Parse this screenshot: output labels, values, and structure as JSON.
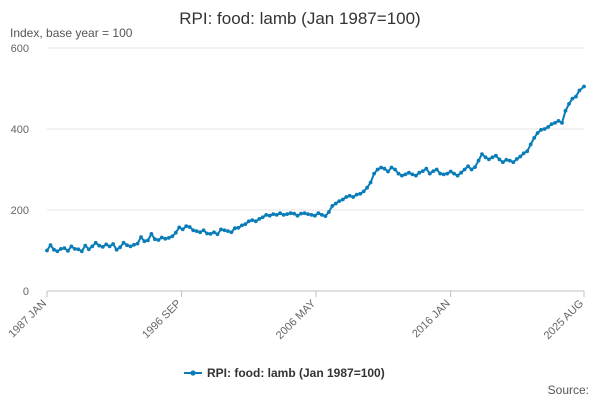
{
  "chart_data": {
    "type": "line",
    "title": "RPI: food: lamb (Jan 1987=100)",
    "subtitle": "Index, base year = 100",
    "source_label": "Source:",
    "color": "#0a7cb8",
    "ylim": [
      0,
      600
    ],
    "yticks": [
      0,
      200,
      400,
      600
    ],
    "xlim": [
      1987.0,
      2025.58
    ],
    "xticks": [
      {
        "label": "1987 JAN",
        "x": 1987.0
      },
      {
        "label": "1996 SEP",
        "x": 1996.67
      },
      {
        "label": "2006 MAY",
        "x": 2006.33
      },
      {
        "label": "2016 JAN",
        "x": 2016.0
      },
      {
        "label": "2025 AUG",
        "x": 2025.58
      }
    ],
    "legend_placement": "bottom",
    "grid": true,
    "series": [
      {
        "name": "RPI: food: lamb (Jan 1987=100)",
        "points": [
          [
            1987.0,
            100
          ],
          [
            1987.25,
            113
          ],
          [
            1987.5,
            102
          ],
          [
            1987.75,
            98
          ],
          [
            1988.0,
            104
          ],
          [
            1988.25,
            106
          ],
          [
            1988.5,
            99
          ],
          [
            1988.75,
            110
          ],
          [
            1989.0,
            104
          ],
          [
            1989.25,
            103
          ],
          [
            1989.5,
            98
          ],
          [
            1989.75,
            112
          ],
          [
            1990.0,
            103
          ],
          [
            1990.25,
            110
          ],
          [
            1990.5,
            119
          ],
          [
            1990.75,
            112
          ],
          [
            1991.0,
            109
          ],
          [
            1991.25,
            115
          ],
          [
            1991.5,
            110
          ],
          [
            1991.75,
            116
          ],
          [
            1992.0,
            102
          ],
          [
            1992.25,
            108
          ],
          [
            1992.5,
            119
          ],
          [
            1992.75,
            113
          ],
          [
            1993.0,
            110
          ],
          [
            1993.25,
            114
          ],
          [
            1993.5,
            117
          ],
          [
            1993.75,
            133
          ],
          [
            1994.0,
            123
          ],
          [
            1994.25,
            125
          ],
          [
            1994.5,
            141
          ],
          [
            1994.75,
            128
          ],
          [
            1995.0,
            126
          ],
          [
            1995.25,
            132
          ],
          [
            1995.5,
            129
          ],
          [
            1995.75,
            131
          ],
          [
            1996.0,
            135
          ],
          [
            1996.25,
            144
          ],
          [
            1996.5,
            157
          ],
          [
            1996.75,
            152
          ],
          [
            1997.0,
            160
          ],
          [
            1997.25,
            158
          ],
          [
            1997.5,
            150
          ],
          [
            1997.75,
            148
          ],
          [
            1998.0,
            145
          ],
          [
            1998.25,
            150
          ],
          [
            1998.5,
            142
          ],
          [
            1998.75,
            141
          ],
          [
            1999.0,
            145
          ],
          [
            1999.25,
            140
          ],
          [
            1999.5,
            152
          ],
          [
            1999.75,
            150
          ],
          [
            2000.0,
            148
          ],
          [
            2000.25,
            145
          ],
          [
            2000.5,
            155
          ],
          [
            2000.75,
            156
          ],
          [
            2001.0,
            162
          ],
          [
            2001.25,
            165
          ],
          [
            2001.5,
            172
          ],
          [
            2001.75,
            175
          ],
          [
            2002.0,
            172
          ],
          [
            2002.25,
            178
          ],
          [
            2002.5,
            182
          ],
          [
            2002.75,
            188
          ],
          [
            2003.0,
            186
          ],
          [
            2003.25,
            190
          ],
          [
            2003.5,
            188
          ],
          [
            2003.75,
            192
          ],
          [
            2004.0,
            188
          ],
          [
            2004.25,
            190
          ],
          [
            2004.5,
            192
          ],
          [
            2004.75,
            191
          ],
          [
            2005.0,
            186
          ],
          [
            2005.25,
            191
          ],
          [
            2005.5,
            192
          ],
          [
            2005.75,
            190
          ],
          [
            2006.0,
            188
          ],
          [
            2006.25,
            186
          ],
          [
            2006.5,
            192
          ],
          [
            2006.75,
            188
          ],
          [
            2007.0,
            185
          ],
          [
            2007.25,
            195
          ],
          [
            2007.5,
            210
          ],
          [
            2007.75,
            216
          ],
          [
            2008.0,
            222
          ],
          [
            2008.25,
            226
          ],
          [
            2008.5,
            232
          ],
          [
            2008.75,
            235
          ],
          [
            2009.0,
            232
          ],
          [
            2009.25,
            238
          ],
          [
            2009.5,
            240
          ],
          [
            2009.75,
            246
          ],
          [
            2010.0,
            255
          ],
          [
            2010.25,
            268
          ],
          [
            2010.5,
            290
          ],
          [
            2010.75,
            300
          ],
          [
            2011.0,
            305
          ],
          [
            2011.25,
            302
          ],
          [
            2011.5,
            295
          ],
          [
            2011.75,
            305
          ],
          [
            2012.0,
            300
          ],
          [
            2012.25,
            290
          ],
          [
            2012.5,
            285
          ],
          [
            2012.75,
            288
          ],
          [
            2013.0,
            292
          ],
          [
            2013.25,
            288
          ],
          [
            2013.5,
            285
          ],
          [
            2013.75,
            292
          ],
          [
            2014.0,
            296
          ],
          [
            2014.25,
            302
          ],
          [
            2014.5,
            290
          ],
          [
            2014.75,
            296
          ],
          [
            2015.0,
            300
          ],
          [
            2015.25,
            290
          ],
          [
            2015.5,
            288
          ],
          [
            2015.75,
            290
          ],
          [
            2016.0,
            295
          ],
          [
            2016.25,
            290
          ],
          [
            2016.5,
            285
          ],
          [
            2016.75,
            292
          ],
          [
            2017.0,
            300
          ],
          [
            2017.25,
            308
          ],
          [
            2017.5,
            300
          ],
          [
            2017.75,
            306
          ],
          [
            2018.0,
            322
          ],
          [
            2018.25,
            338
          ],
          [
            2018.5,
            330
          ],
          [
            2018.75,
            325
          ],
          [
            2019.0,
            330
          ],
          [
            2019.25,
            334
          ],
          [
            2019.5,
            325
          ],
          [
            2019.75,
            318
          ],
          [
            2020.0,
            324
          ],
          [
            2020.25,
            322
          ],
          [
            2020.5,
            318
          ],
          [
            2020.75,
            326
          ],
          [
            2021.0,
            332
          ],
          [
            2021.25,
            340
          ],
          [
            2021.5,
            345
          ],
          [
            2021.75,
            362
          ],
          [
            2022.0,
            378
          ],
          [
            2022.25,
            390
          ],
          [
            2022.5,
            398
          ],
          [
            2022.75,
            400
          ],
          [
            2023.0,
            405
          ],
          [
            2023.25,
            412
          ],
          [
            2023.5,
            415
          ],
          [
            2023.75,
            420
          ],
          [
            2024.0,
            415
          ],
          [
            2024.25,
            445
          ],
          [
            2024.5,
            462
          ],
          [
            2024.75,
            475
          ],
          [
            2025.0,
            480
          ],
          [
            2025.25,
            495
          ],
          [
            2025.58,
            505
          ]
        ]
      }
    ]
  }
}
